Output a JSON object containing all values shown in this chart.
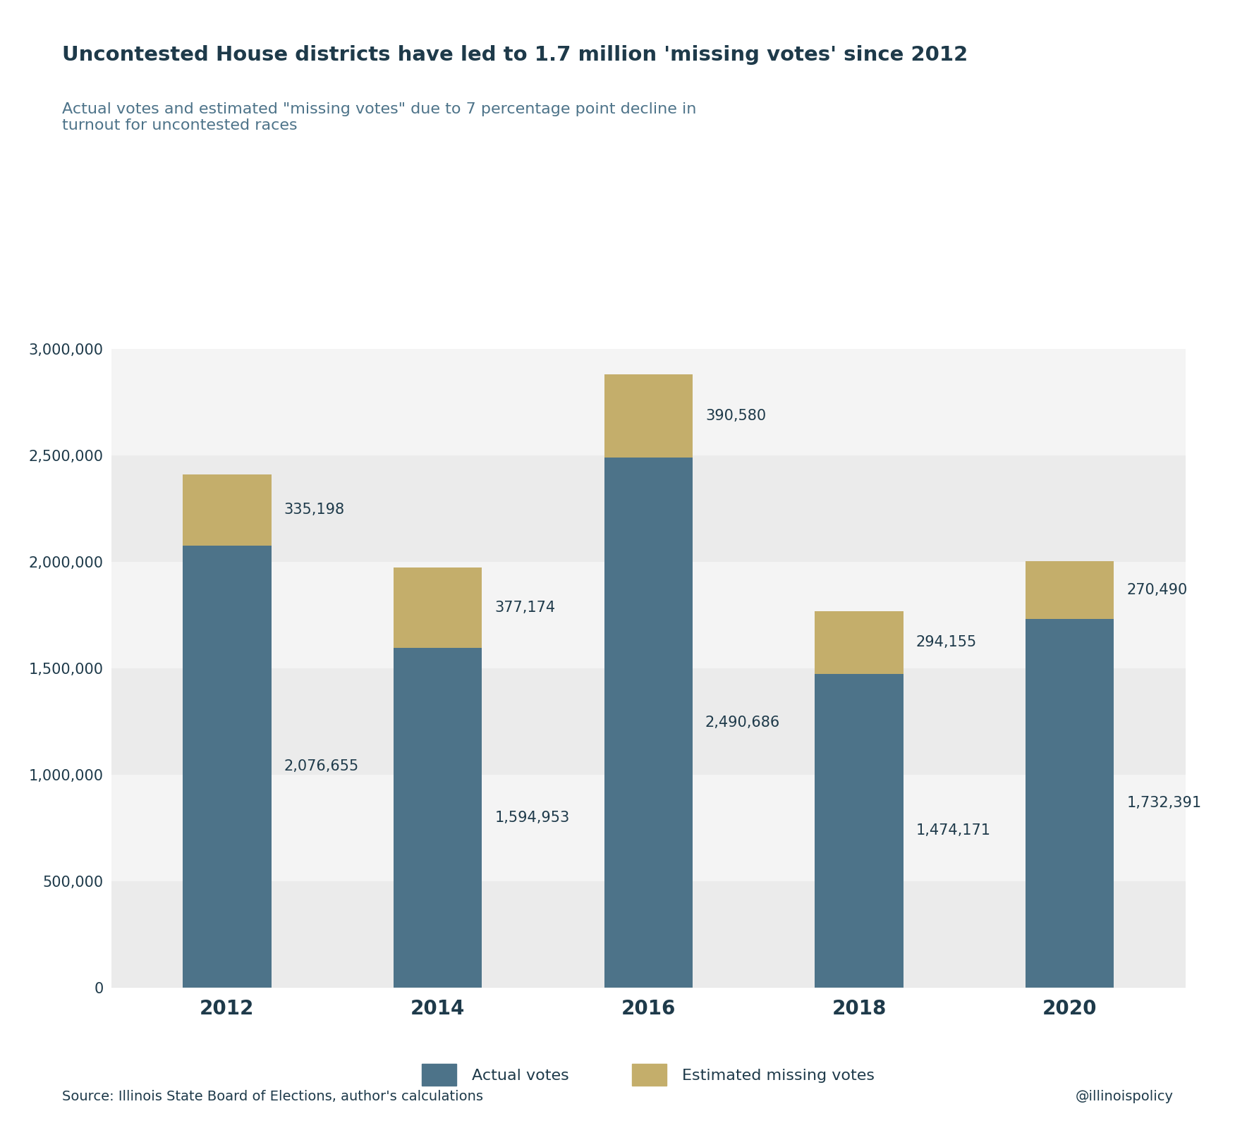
{
  "title": "Uncontested House districts have led to 1.7 million 'missing votes' since 2012",
  "subtitle": "Actual votes and estimated \"missing votes\" due to 7 percentage point decline in\nturnout for uncontested races",
  "years": [
    "2012",
    "2014",
    "2016",
    "2018",
    "2020"
  ],
  "actual_votes": [
    2076655,
    1594953,
    2490686,
    1474171,
    1732391
  ],
  "missing_votes": [
    335198,
    377174,
    390580,
    294155,
    270490
  ],
  "actual_color": "#4d7389",
  "missing_color": "#c4ae6b",
  "background_color": "#ffffff",
  "stripe_colors": [
    "#ebebeb",
    "#f4f4f4"
  ],
  "title_color": "#1e3a4a",
  "subtitle_color": "#4d7389",
  "label_color": "#1e3a4a",
  "source_text": "Source: Illinois State Board of Elections, author's calculations",
  "handle_text": "@illinoispolicy",
  "legend_actual": "Actual votes",
  "legend_missing": "Estimated missing votes",
  "ylim": [
    0,
    3200000
  ],
  "yticks": [
    0,
    500000,
    1000000,
    1500000,
    2000000,
    2500000,
    3000000
  ],
  "bar_width": 0.42,
  "title_fontsize": 21,
  "subtitle_fontsize": 16,
  "axis_fontsize": 15,
  "xtick_fontsize": 20,
  "annotation_fontsize": 15,
  "legend_fontsize": 16,
  "source_fontsize": 14
}
